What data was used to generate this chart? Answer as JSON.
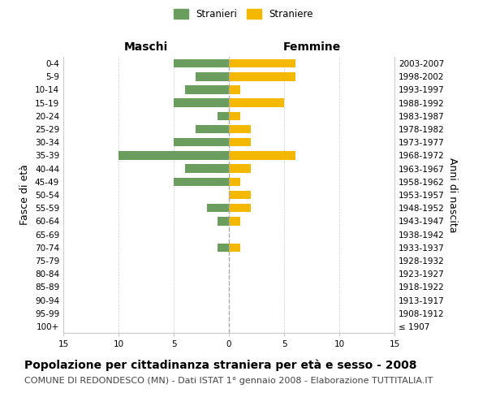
{
  "age_groups": [
    "100+",
    "95-99",
    "90-94",
    "85-89",
    "80-84",
    "75-79",
    "70-74",
    "65-69",
    "60-64",
    "55-59",
    "50-54",
    "45-49",
    "40-44",
    "35-39",
    "30-34",
    "25-29",
    "20-24",
    "15-19",
    "10-14",
    "5-9",
    "0-4"
  ],
  "birth_years": [
    "≤ 1907",
    "1908-1912",
    "1913-1917",
    "1918-1922",
    "1923-1927",
    "1928-1932",
    "1933-1937",
    "1938-1942",
    "1943-1947",
    "1948-1952",
    "1953-1957",
    "1958-1962",
    "1963-1967",
    "1968-1972",
    "1973-1977",
    "1978-1982",
    "1983-1987",
    "1988-1992",
    "1993-1997",
    "1998-2002",
    "2003-2007"
  ],
  "males": [
    0,
    0,
    0,
    0,
    0,
    0,
    1,
    0,
    1,
    2,
    0,
    5,
    4,
    10,
    5,
    3,
    1,
    5,
    4,
    3,
    5
  ],
  "females": [
    0,
    0,
    0,
    0,
    0,
    0,
    1,
    0,
    1,
    2,
    2,
    1,
    2,
    6,
    2,
    2,
    1,
    5,
    1,
    6,
    6
  ],
  "male_color": "#6b9e5e",
  "female_color": "#f5b800",
  "background_color": "#ffffff",
  "grid_color": "#cccccc",
  "xlim": 15,
  "xlabel_left": "Maschi",
  "xlabel_right": "Femmine",
  "ylabel_left": "Fasce di età",
  "ylabel_right": "Anni di nascita",
  "title": "Popolazione per cittadinanza straniera per età e sesso - 2008",
  "subtitle": "COMUNE DI REDONDESCO (MN) - Dati ISTAT 1° gennaio 2008 - Elaborazione TUTTITALIA.IT",
  "legend_stranieri": "Stranieri",
  "legend_straniere": "Straniere",
  "title_fontsize": 10,
  "subtitle_fontsize": 8,
  "tick_fontsize": 7.5,
  "label_fontsize": 9
}
